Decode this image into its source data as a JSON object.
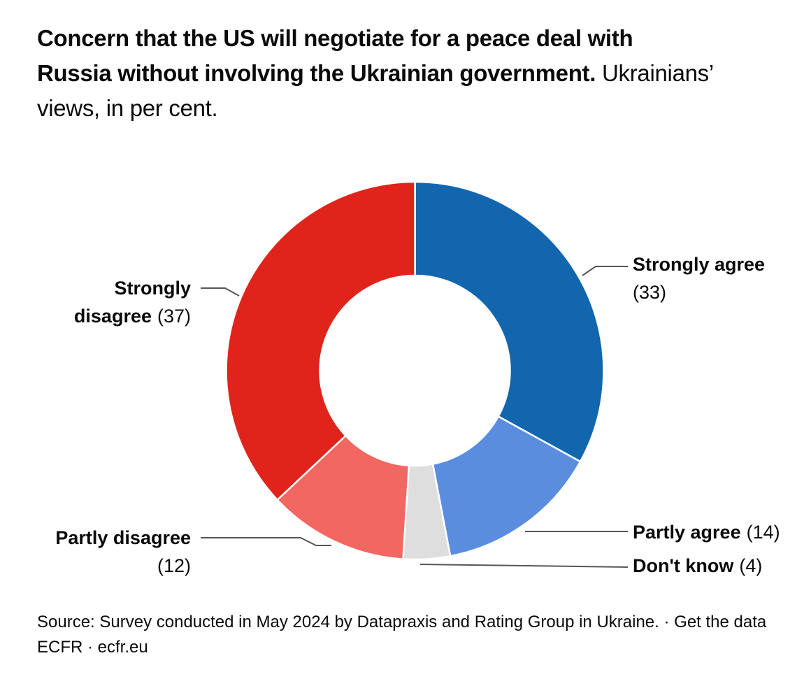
{
  "title": {
    "line1_bold": "Concern that the US will negotiate for a peace deal with",
    "line2_bold": "Russia without involving the Ukrainian government.",
    "line2_regular": " Ukrainians’",
    "line3_regular": "views, in per cent."
  },
  "source": {
    "line1": "Source: Survey conducted in May 2024 by Datapraxis and Rating Group in Ukraine. · Get the data",
    "line2": "ECFR · ecfr.eu"
  },
  "chart_data": {
    "type": "pie",
    "subtype": "donut",
    "title": "Concern that the US will negotiate for a peace deal with Russia without involving the Ukrainian government. Ukrainians’ views, in per cent.",
    "units": "per cent",
    "rotation": "starts at 12 o'clock, clockwise",
    "legend": "none (direct labels with leader lines)",
    "categories": [
      "Strongly agree",
      "Partly agree",
      "Don't know",
      "Partly disagree",
      "Strongly disagree"
    ],
    "values": [
      33,
      14,
      4,
      12,
      37
    ],
    "colors": [
      "#1266ae",
      "#5b8ddf",
      "#dedede",
      "#f26762",
      "#e0241b"
    ],
    "gap_color": "#ffffff",
    "labels": {
      "strongly_agree": {
        "name": "Strongly agree",
        "value": "(33)"
      },
      "partly_agree": {
        "name": "Partly agree",
        "value": "(14)"
      },
      "dont_know": {
        "name": "Don't know",
        "value": "(4)"
      },
      "partly_disagree": {
        "name": "Partly disagree",
        "value": "(12)"
      },
      "strongly_disagree": {
        "name_line1": "Strongly",
        "name_line2": "disagree",
        "value": "(37)"
      }
    }
  }
}
